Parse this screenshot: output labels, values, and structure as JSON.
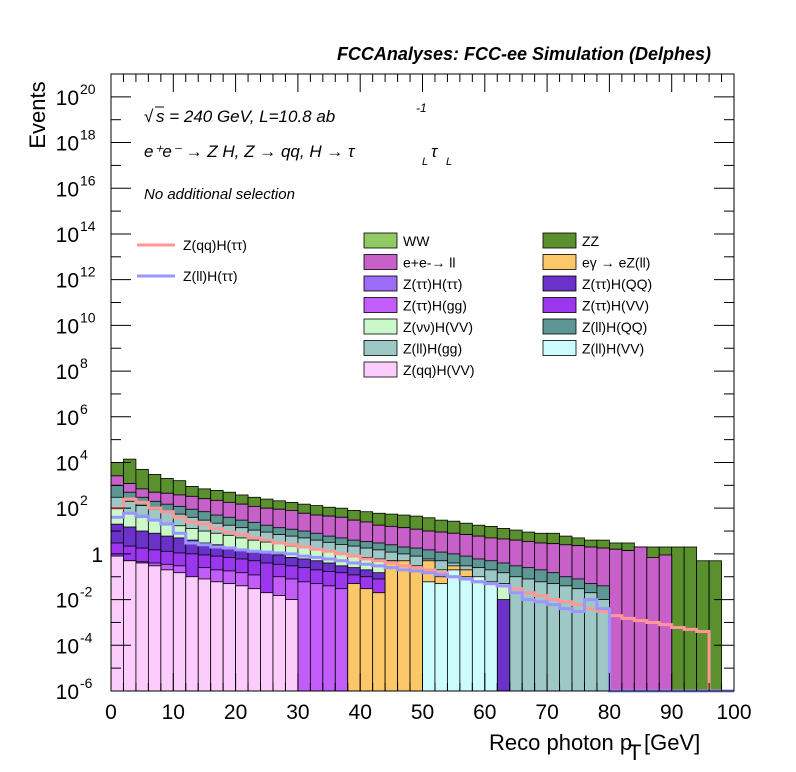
{
  "chart_data": {
    "type": "bar",
    "title": "FCCAnalyses: FCC-ee Simulation (Delphes)",
    "annotations": [
      "√s = 240 GeV, L=10.8 ab -1",
      "e+e- → Z H, Z → qq, H → τLτL",
      "No additional selection"
    ],
    "annotation_parts": {
      "sqrt": "√",
      "energy": "s = 240 GeV, L=10.8 ab",
      "lumi_exp": "-1",
      "process": "e⁺e⁻ → Z H, Z → qq, H → τ",
      "tau_sub": "L",
      "tau": "τ",
      "selection": "No additional selection"
    },
    "xlabel": "Reco photon p",
    "xlabel_sub": "T",
    "xlabel_unit": "[GeV]",
    "ylabel": "Events",
    "xlim": [
      0,
      100
    ],
    "ylim": [
      1e-06,
      1e+21
    ],
    "yscale": "log",
    "bin_width": 2,
    "x_ticks": [
      "0",
      "10",
      "20",
      "30",
      "40",
      "50",
      "60",
      "70",
      "80",
      "90",
      "100"
    ],
    "y_ticks": [
      {
        "base": "10",
        "exp": "-6",
        "value": 1e-06
      },
      {
        "base": "10",
        "exp": "-4",
        "value": 0.0001
      },
      {
        "base": "10",
        "exp": "-2",
        "value": 0.01
      },
      {
        "base": "1",
        "exp": "",
        "value": 1
      },
      {
        "base": "10",
        "exp": "2",
        "value": 100.0
      },
      {
        "base": "10",
        "exp": "4",
        "value": 10000.0
      },
      {
        "base": "10",
        "exp": "6",
        "value": 1000000.0
      },
      {
        "base": "10",
        "exp": "8",
        "value": 100000000.0
      },
      {
        "base": "10",
        "exp": "10",
        "value": 10000000000.0
      },
      {
        "base": "10",
        "exp": "12",
        "value": 1000000000000.0
      },
      {
        "base": "10",
        "exp": "14",
        "value": 100000000000000.0
      },
      {
        "base": "10",
        "exp": "16",
        "value": 1e+16
      },
      {
        "base": "10",
        "exp": "18",
        "value": 1e+18
      },
      {
        "base": "10",
        "exp": "20",
        "value": 1e+20
      }
    ],
    "grid": false,
    "legend_placement": "top-right",
    "stack_totals": [
      {
        "name": "ZZ",
        "color": "#5b902f",
        "values": [
          10000,
          14000,
          5000,
          3000,
          2000,
          1600,
          900,
          700,
          600,
          500,
          380,
          300,
          250,
          210,
          180,
          150,
          130,
          110,
          100,
          80,
          70,
          60,
          55,
          50,
          45,
          38,
          30,
          27,
          22,
          18,
          16,
          13,
          11,
          9,
          8,
          8,
          6,
          5,
          4,
          4,
          3,
          3,
          2,
          2,
          2,
          2,
          2,
          0.5,
          0.5,
          0
        ]
      },
      {
        "name": "WW",
        "color": "#91c964",
        "values": [
          2600,
          1200,
          700,
          500,
          450,
          380,
          330,
          260,
          220,
          180,
          150,
          120,
          100,
          90,
          80,
          60,
          50,
          45,
          40,
          30,
          25,
          18,
          16,
          14,
          12,
          10,
          9,
          8,
          7,
          6,
          5,
          4.5,
          4,
          3.5,
          3,
          2.8,
          2.5,
          2.3,
          2,
          1.8,
          1.6,
          1.4,
          2,
          0.7,
          0.9,
          0,
          0,
          0,
          0,
          0
        ]
      },
      {
        "name": "e+e- → ll",
        "color": "#c760c9",
        "values": [
          2600,
          1200,
          700,
          500,
          450,
          380,
          330,
          260,
          220,
          180,
          150,
          120,
          100,
          90,
          80,
          60,
          50,
          45,
          40,
          30,
          25,
          18,
          16,
          14,
          12,
          10,
          9,
          8,
          7,
          6,
          5,
          4.5,
          4,
          3.5,
          3,
          2.8,
          2.5,
          2.3,
          2,
          1.8,
          1.6,
          1.4,
          2,
          0.7,
          0.9,
          0,
          0,
          0,
          0,
          0
        ]
      },
      {
        "name": "Z(ll)H(QQ)",
        "color": "#5e9694",
        "values": [
          1000,
          500,
          300,
          200,
          150,
          120,
          90,
          70,
          50,
          40,
          30,
          24,
          18,
          14,
          12,
          10,
          8,
          6,
          5,
          4,
          3.5,
          3,
          2.5,
          2,
          1.8,
          1.5,
          1.2,
          1,
          0.8,
          0.6,
          0.5,
          0.4,
          0.3,
          0.25,
          0.2,
          0.15,
          0.1,
          0.08,
          0.05,
          0.04,
          0,
          0,
          0,
          0,
          0,
          0,
          0,
          0,
          0,
          0
        ]
      },
      {
        "name": "Z(ll)H(gg)",
        "color": "#9ec8c6",
        "values": [
          300,
          200,
          130,
          90,
          70,
          55,
          40,
          30,
          22,
          18,
          14,
          11,
          9,
          7,
          6,
          5,
          4,
          3.2,
          2.6,
          2.2,
          1.8,
          1.5,
          1.2,
          1,
          0.8,
          0.6,
          0.5,
          0.4,
          0.3,
          0.25,
          0.2,
          0.15,
          0.1,
          0.08,
          0.06,
          0.05,
          0.04,
          0.03,
          0.02,
          0.01,
          0,
          0,
          0,
          0,
          0,
          0,
          0,
          0,
          0,
          0
        ]
      },
      {
        "name": "Z(νν)H(VV)",
        "color": "#cbf8c9",
        "values": [
          100,
          60,
          40,
          30,
          22,
          17,
          13,
          10,
          8,
          6.5,
          5,
          4,
          3.3,
          2.7,
          2.2,
          1.8,
          1.5,
          1.2,
          1,
          0.8,
          0.7,
          0.6,
          0.5,
          0.4,
          0.3,
          0.25,
          0.2,
          0.15,
          0.1,
          0.08,
          0.06,
          0.05,
          0,
          0,
          0,
          0,
          0,
          0,
          0,
          0,
          0,
          0,
          0,
          0,
          0,
          0,
          0,
          0,
          0,
          0
        ]
      },
      {
        "name": "Z(ττ)H(QQ)",
        "color": "#6a32c8",
        "values": [
          20,
          15,
          10,
          8,
          6,
          5,
          4,
          3,
          2.5,
          2,
          1.6,
          1.3,
          1.1,
          0.9,
          0.7,
          0.6,
          0.5,
          0.4,
          0.3,
          0.25,
          0.2,
          0.15,
          0.12,
          0.1,
          0.08,
          0.06,
          0.05,
          0.04,
          0.03,
          0.02,
          0.015,
          0.01,
          0,
          0,
          0,
          0,
          0,
          0,
          0,
          0,
          0,
          0,
          0,
          0,
          0,
          0,
          0,
          0,
          0,
          0
        ]
      },
      {
        "name": "Z(ττ)H(VV)",
        "color": "#9b36ef",
        "values": [
          3,
          2.2,
          1.8,
          1.5,
          1.3,
          1.1,
          1,
          0.9,
          0.8,
          0.7,
          0.6,
          0.5,
          0.4,
          0.35,
          0.3,
          0.25,
          0.2,
          0.17,
          0.15,
          0.12,
          0.1,
          0.08,
          0.06,
          0.05,
          0.04,
          0.03,
          0.02,
          0.015,
          0.01,
          0,
          0,
          0,
          0,
          0,
          0,
          0,
          0,
          0,
          0,
          0,
          0,
          0,
          0,
          0,
          0,
          0,
          0,
          0,
          0,
          0
        ]
      },
      {
        "name": "Z(ττ)H(gg)",
        "color": "#c35dfa",
        "values": [
          0.6,
          0.5,
          0.45,
          0.4,
          0.35,
          0.3,
          0.003,
          0.25,
          0.2,
          0.18,
          0.15,
          0.12,
          0.0004,
          0.1,
          0.08,
          0.06,
          0.05,
          0.04,
          0.03,
          0.025,
          0.02,
          0.015,
          0.01,
          0.005,
          0,
          0,
          0,
          0,
          0,
          0,
          0,
          0,
          0,
          0,
          0,
          0,
          0,
          0,
          0,
          0,
          0,
          0,
          0,
          0,
          0,
          0,
          0,
          0,
          0,
          0
        ]
      },
      {
        "name": "eγ → eZ(ll)",
        "color": "#fcc768",
        "values": [
          0,
          0,
          0,
          0,
          0,
          0,
          0,
          0,
          0,
          0,
          0,
          0,
          0,
          0,
          0,
          0,
          0,
          0,
          0,
          0.05,
          0.03,
          0.02,
          0.5,
          0.5,
          0.3,
          0.5,
          0.1,
          0.3,
          0.2,
          0,
          0,
          0,
          0,
          0,
          0,
          0,
          0,
          0,
          0,
          0,
          0,
          0,
          0,
          0,
          0,
          0,
          0,
          0,
          0,
          0
        ]
      },
      {
        "name": "Z(ll)H(VV)",
        "color": "#ccfcfc",
        "values": [
          0,
          0,
          0,
          0,
          0,
          0,
          0,
          0,
          0,
          0,
          0,
          0,
          0,
          0,
          0,
          0,
          0,
          0,
          0,
          0,
          0,
          0,
          0,
          0,
          0,
          0.06,
          0.05,
          0.2,
          0.1,
          0.1,
          0.05,
          0,
          0,
          0,
          0,
          0,
          0,
          0,
          0,
          0,
          0,
          0,
          0,
          0,
          0,
          0,
          0,
          0,
          0,
          0
        ]
      },
      {
        "name": "Z(qq)H(VV)",
        "color": "#fcccfc",
        "values": [
          0.8,
          0.5,
          0.4,
          0.3,
          0.2,
          0.15,
          0.1,
          0.08,
          0.06,
          0.05,
          0.04,
          0.03,
          0.02,
          0.015,
          0.01,
          0,
          0,
          0,
          0,
          0,
          0,
          0,
          0,
          0,
          0,
          0,
          0,
          0,
          0,
          0,
          0,
          0,
          0,
          0,
          0,
          0,
          0,
          0,
          0,
          0,
          0,
          0,
          0,
          0,
          0,
          0,
          0,
          0,
          0,
          0
        ]
      }
    ],
    "series": [
      {
        "name": "Z(qq)H(ττ)",
        "color": "#ff9797",
        "values": [
          100,
          250,
          180,
          100,
          70,
          40,
          25,
          20,
          13,
          9,
          7,
          5,
          4,
          3,
          2.5,
          2,
          1.6,
          1.3,
          1,
          0.8,
          0.6,
          0.5,
          0.4,
          0.3,
          0.25,
          0.2,
          0.15,
          0.1,
          0.08,
          0.06,
          0.05,
          0.04,
          0.03,
          0.02,
          0.015,
          0.01,
          0.008,
          0.006,
          0.004,
          0.003,
          0.002,
          0.0015,
          0.0012,
          0.001,
          0.0008,
          0.0006,
          0.0005,
          0.0004,
          0,
          0
        ]
      },
      {
        "name": "Z(ll)H(ττ)",
        "color": "#9797ff",
        "values": [
          40,
          60,
          45,
          30,
          20,
          8,
          3,
          2.5,
          2,
          1.8,
          1.5,
          1.3,
          1.2,
          1.1,
          1,
          0.8,
          0.7,
          0.6,
          0.5,
          0.4,
          0.35,
          0.3,
          0.25,
          0.2,
          0.18,
          0.15,
          0.12,
          0.1,
          0.08,
          0.06,
          0.05,
          0.04,
          0.02,
          0.01,
          0.008,
          0.006,
          0.004,
          0.003,
          0.01,
          0.004,
          0,
          0,
          0,
          0,
          0,
          0,
          0,
          0,
          0,
          0
        ]
      }
    ],
    "legend_left": [
      "Z(qq)H(ττ)",
      "Z(ll)H(ττ)"
    ],
    "legend_fill": [
      [
        "WW",
        "ZZ"
      ],
      [
        "e+e-→ ll",
        "eγ → eZ(ll)"
      ],
      [
        "Z(ττ)H(ττ)",
        "Z(ττ)H(QQ)"
      ],
      [
        "Z(ττ)H(gg)",
        "Z(ττ)H(VV)"
      ],
      [
        "Z(νν)H(VV)",
        "Z(ll)H(QQ)"
      ],
      [
        "Z(ll)H(gg)",
        "Z(ll)H(VV)"
      ],
      [
        "Z(qq)H(VV)",
        ""
      ]
    ],
    "legend_colors": {
      "WW": "#91c964",
      "ZZ": "#5b902f",
      "e+e-→ ll": "#c760c9",
      "eγ → eZ(ll)": "#fcc768",
      "Z(ττ)H(ττ)": "#9b6cf8",
      "Z(ττ)H(QQ)": "#6a32c8",
      "Z(ττ)H(gg)": "#c35dfa",
      "Z(ττ)H(VV)": "#9b36ef",
      "Z(νν)H(VV)": "#cbf8c9",
      "Z(ll)H(QQ)": "#5e9694",
      "Z(ll)H(gg)": "#9ec8c6",
      "Z(ll)H(VV)": "#ccfcfc",
      "Z(qq)H(VV)": "#fcccfc"
    }
  }
}
